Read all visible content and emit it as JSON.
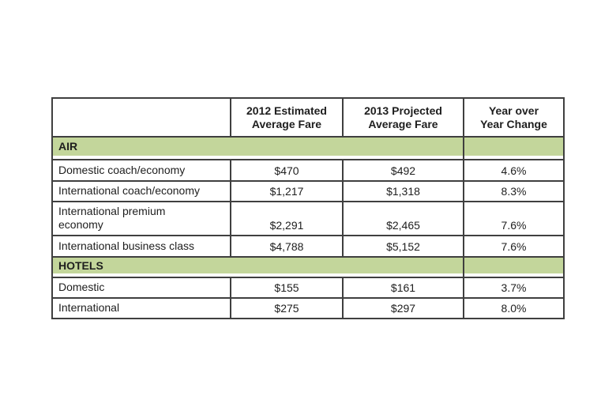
{
  "chart_data": {
    "type": "table",
    "columns": [
      "",
      "2012 Estimated Average Fare",
      "2013 Projected Average Fare",
      "Year over Year Change"
    ],
    "sections": [
      {
        "section": "AIR",
        "rows": [
          {
            "category": "Domestic coach/economy",
            "fare_2012_usd": 470,
            "fare_2013_usd": 492,
            "yoy_change_pct": 4.6
          },
          {
            "category": "International coach/economy",
            "fare_2012_usd": 1217,
            "fare_2013_usd": 1318,
            "yoy_change_pct": 8.3
          },
          {
            "category": "International premium economy",
            "fare_2012_usd": 2291,
            "fare_2013_usd": 2465,
            "yoy_change_pct": 7.6
          },
          {
            "category": "International business class",
            "fare_2012_usd": 4788,
            "fare_2013_usd": 5152,
            "yoy_change_pct": 7.6
          }
        ]
      },
      {
        "section": "HOTELS",
        "rows": [
          {
            "category": "Domestic",
            "fare_2012_usd": 155,
            "fare_2013_usd": 161,
            "yoy_change_pct": 3.7
          },
          {
            "category": "International",
            "fare_2012_usd": 275,
            "fare_2013_usd": 297,
            "yoy_change_pct": 8.0
          }
        ]
      }
    ],
    "layout": {
      "grid": true,
      "section_band_color": "#c3d69b"
    }
  },
  "table": {
    "header": {
      "col0": "",
      "col1": "2012 Estimated\nAverage Fare",
      "col2": "2013 Projected\nAverage Fare",
      "col3": "Year over\nYear Change"
    },
    "sections": [
      {
        "label": "AIR",
        "rows": [
          {
            "label": "Domestic coach/economy",
            "fare2012": "$470",
            "fare2013": "$492",
            "yoy": "4.6%"
          },
          {
            "label": "International coach/economy",
            "fare2012": "$1,217",
            "fare2013": "$1,318",
            "yoy": "8.3%"
          },
          {
            "label": "International premium\neconomy",
            "fare2012": "$2,291",
            "fare2013": "$2,465",
            "yoy": "7.6%"
          },
          {
            "label": "International business class",
            "fare2012": "$4,788",
            "fare2013": "$5,152",
            "yoy": "7.6%"
          }
        ]
      },
      {
        "label": "HOTELS",
        "rows": [
          {
            "label": "Domestic",
            "fare2012": "$155",
            "fare2013": "$161",
            "yoy": "3.7%"
          },
          {
            "label": "International",
            "fare2012": "$275",
            "fare2013": "$297",
            "yoy": "8.0%"
          }
        ]
      }
    ],
    "colors": {
      "section_band": "#c3d69b",
      "border": "#3f3f3f",
      "text": "#1e1e1e",
      "background": "#ffffff"
    }
  }
}
